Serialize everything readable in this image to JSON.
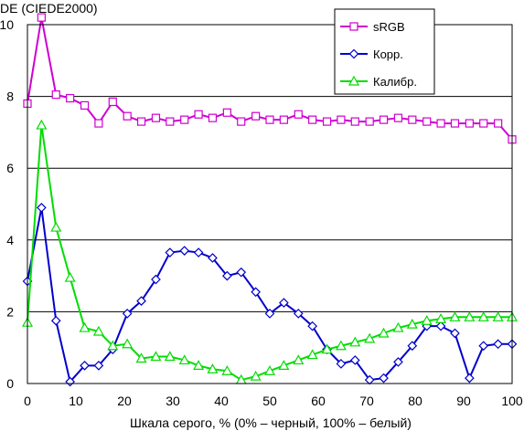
{
  "chart_data": {
    "type": "line",
    "ylabel": "DE (CIEDE2000)",
    "xlabel": "Шкала серого, % (0% – черный, 100% – белый)",
    "xlim": [
      0,
      100
    ],
    "ylim": [
      0,
      10
    ],
    "xticks": [
      0,
      10,
      20,
      30,
      40,
      50,
      60,
      70,
      80,
      90,
      100
    ],
    "yticks": [
      0,
      2,
      4,
      6,
      8,
      10
    ],
    "grid": "horizontal",
    "legend_position": "top-right",
    "x": [
      0,
      2.9,
      5.9,
      8.8,
      11.8,
      14.7,
      17.6,
      20.6,
      23.5,
      26.5,
      29.4,
      32.4,
      35.3,
      38.2,
      41.2,
      44.1,
      47.1,
      50,
      52.9,
      55.9,
      58.8,
      61.8,
      64.7,
      67.6,
      70.6,
      73.5,
      76.5,
      79.4,
      82.4,
      85.3,
      88.2,
      91.2,
      94.1,
      97.1,
      100
    ],
    "series": [
      {
        "name": "sRGB",
        "color": "#d000d0",
        "marker": "square",
        "values": [
          7.8,
          10.2,
          8.05,
          7.95,
          7.75,
          7.25,
          7.85,
          7.45,
          7.3,
          7.4,
          7.3,
          7.35,
          7.5,
          7.4,
          7.55,
          7.3,
          7.45,
          7.35,
          7.35,
          7.5,
          7.35,
          7.3,
          7.35,
          7.3,
          7.3,
          7.35,
          7.4,
          7.35,
          7.3,
          7.25,
          7.25,
          7.25,
          7.25,
          7.25,
          6.8
        ]
      },
      {
        "name": "Корр.",
        "color": "#0000cc",
        "marker": "diamond",
        "values": [
          2.85,
          4.9,
          1.75,
          0.05,
          0.5,
          0.5,
          0.95,
          1.95,
          2.3,
          2.9,
          3.65,
          3.7,
          3.65,
          3.5,
          3.0,
          3.1,
          2.55,
          1.95,
          2.25,
          1.95,
          1.6,
          0.95,
          0.55,
          0.65,
          0.1,
          0.15,
          0.6,
          1.05,
          1.6,
          1.6,
          1.4,
          0.15,
          1.05,
          1.1,
          1.1
        ]
      },
      {
        "name": "Калибр.",
        "color": "#00dd00",
        "marker": "triangle",
        "values": [
          1.7,
          7.2,
          4.35,
          2.95,
          1.55,
          1.45,
          1.05,
          1.1,
          0.7,
          0.75,
          0.75,
          0.65,
          0.5,
          0.4,
          0.35,
          0.1,
          0.2,
          0.35,
          0.5,
          0.65,
          0.8,
          0.95,
          1.05,
          1.15,
          1.25,
          1.4,
          1.55,
          1.65,
          1.75,
          1.8,
          1.85,
          1.85,
          1.85,
          1.85,
          1.85
        ]
      }
    ]
  }
}
